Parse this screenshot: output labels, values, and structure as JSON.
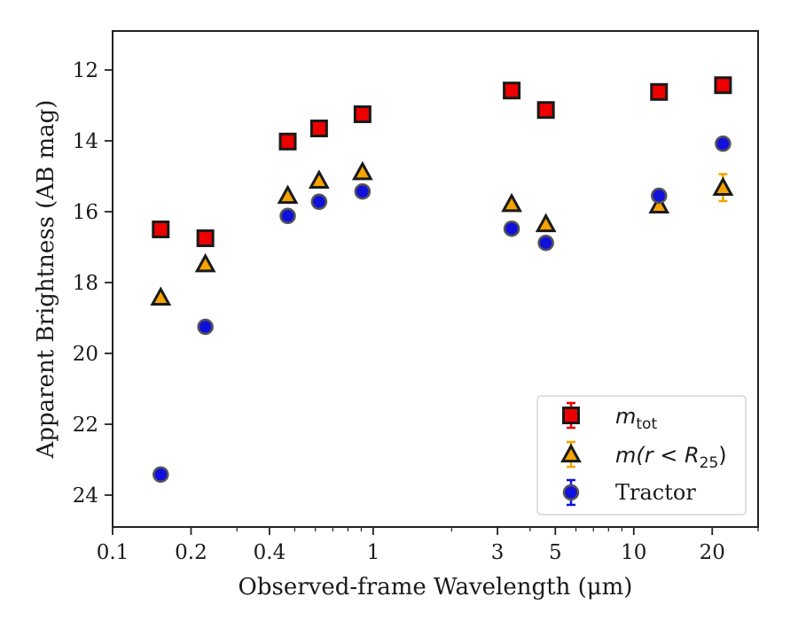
{
  "chart_data": {
    "type": "scatter",
    "xscale": "log",
    "xlim": [
      0.1,
      30
    ],
    "ylim": [
      24.9,
      10.9
    ],
    "y_inverted": true,
    "xlabel": "Observed-frame Wavelength (μm)",
    "ylabel": "Apparent Brightness (AB mag)",
    "x_ticks": [
      {
        "value": 0.1,
        "label": "0.1"
      },
      {
        "value": 0.2,
        "label": "0.2"
      },
      {
        "value": 0.4,
        "label": "0.4"
      },
      {
        "value": 1,
        "label": "1"
      },
      {
        "value": 3,
        "label": "3"
      },
      {
        "value": 5,
        "label": "5"
      },
      {
        "value": 10,
        "label": "10"
      },
      {
        "value": 20,
        "label": "20"
      }
    ],
    "y_ticks": [
      {
        "value": 12,
        "label": "12"
      },
      {
        "value": 14,
        "label": "14"
      },
      {
        "value": 16,
        "label": "16"
      },
      {
        "value": 18,
        "label": "18"
      },
      {
        "value": 20,
        "label": "20"
      },
      {
        "value": 22,
        "label": "22"
      },
      {
        "value": 24,
        "label": "24"
      }
    ],
    "grid": false,
    "legend_position": "lower-right",
    "series": [
      {
        "name": "m_tot",
        "legend_base": "m",
        "legend_sub": "tot",
        "marker": "square",
        "face_color": "#ee0000",
        "edge_color": "#1a1a1a",
        "errorbar_color": "#ee0000",
        "points": [
          {
            "x": 0.153,
            "y": 16.5,
            "err": 0.05
          },
          {
            "x": 0.227,
            "y": 16.75,
            "err": 0.05
          },
          {
            "x": 0.47,
            "y": 14.02,
            "err": 0.05
          },
          {
            "x": 0.62,
            "y": 13.65,
            "err": 0.05
          },
          {
            "x": 0.91,
            "y": 13.25,
            "err": 0.05
          },
          {
            "x": 3.4,
            "y": 12.58,
            "err": 0.05
          },
          {
            "x": 4.6,
            "y": 13.13,
            "err": 0.05
          },
          {
            "x": 12.5,
            "y": 12.62,
            "err": 0.05
          },
          {
            "x": 22.0,
            "y": 12.43,
            "err": 0.05
          }
        ]
      },
      {
        "name": "m(r < R_25)",
        "legend_base": "m(r < R",
        "legend_sub": "25",
        "legend_tail": ")",
        "marker": "triangle",
        "face_color": "#f5a300",
        "edge_color": "#1a1a1a",
        "errorbar_color": "#f5a300",
        "points": [
          {
            "x": 0.153,
            "y": 18.42,
            "err": 0.05
          },
          {
            "x": 0.227,
            "y": 17.48,
            "err": 0.05
          },
          {
            "x": 0.47,
            "y": 15.55,
            "err": 0.05
          },
          {
            "x": 0.62,
            "y": 15.12,
            "err": 0.05
          },
          {
            "x": 0.91,
            "y": 14.88,
            "err": 0.05
          },
          {
            "x": 3.4,
            "y": 15.78,
            "err": 0.05
          },
          {
            "x": 4.6,
            "y": 16.35,
            "err": 0.05
          },
          {
            "x": 12.5,
            "y": 15.82,
            "err": 0.08
          },
          {
            "x": 22.0,
            "y": 15.32,
            "err": 0.38
          }
        ]
      },
      {
        "name": "Tractor",
        "legend_base": "Tractor",
        "marker": "circle",
        "face_color": "#1010dd",
        "edge_color": "#555555",
        "errorbar_color": "#1010dd",
        "points": [
          {
            "x": 0.153,
            "y": 23.42,
            "err": 0.05
          },
          {
            "x": 0.227,
            "y": 19.25,
            "err": 0.05
          },
          {
            "x": 0.47,
            "y": 16.12,
            "err": 0.05
          },
          {
            "x": 0.62,
            "y": 15.72,
            "err": 0.05
          },
          {
            "x": 0.91,
            "y": 15.43,
            "err": 0.05
          },
          {
            "x": 3.4,
            "y": 16.48,
            "err": 0.05
          },
          {
            "x": 4.6,
            "y": 16.88,
            "err": 0.05
          },
          {
            "x": 12.5,
            "y": 15.55,
            "err": 0.05
          },
          {
            "x": 22.0,
            "y": 14.08,
            "err": 0.05
          }
        ]
      }
    ]
  }
}
